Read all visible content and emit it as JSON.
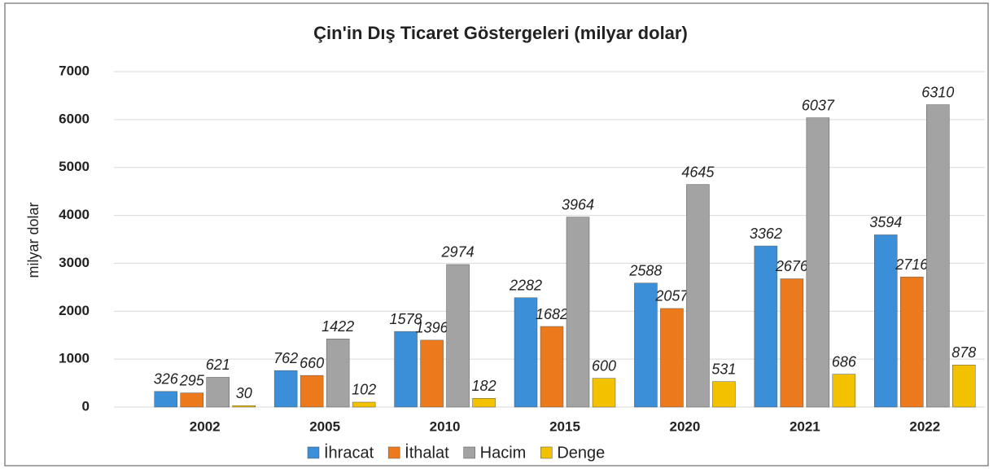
{
  "chart_data": {
    "type": "bar",
    "title": "Çin'in Dış Ticaret Göstergeleri  (milyar dolar)",
    "y_label": "milyar dolar",
    "categories": [
      "2002",
      "2005",
      "2010",
      "2015",
      "2020",
      "2021",
      "2022"
    ],
    "series": [
      {
        "name": "İhracat",
        "color": "#3a8fd8",
        "values": [
          326,
          762,
          1578,
          2282,
          2588,
          3362,
          3594
        ]
      },
      {
        "name": "İthalat",
        "color": "#ec7a1c",
        "values": [
          295,
          660,
          1396,
          1682,
          2057,
          2676,
          2716
        ]
      },
      {
        "name": "Hacim",
        "color": "#a3a3a3",
        "values": [
          621,
          1422,
          2974,
          3964,
          4645,
          6037,
          6310
        ]
      },
      {
        "name": "Denge",
        "color": "#f2c200",
        "values": [
          30,
          102,
          182,
          600,
          531,
          686,
          878
        ]
      }
    ],
    "ylim": [
      0,
      7000
    ],
    "yticks": [
      0,
      1000,
      2000,
      3000,
      4000,
      5000,
      6000,
      7000
    ],
    "grid": true,
    "legend": "bottom"
  }
}
